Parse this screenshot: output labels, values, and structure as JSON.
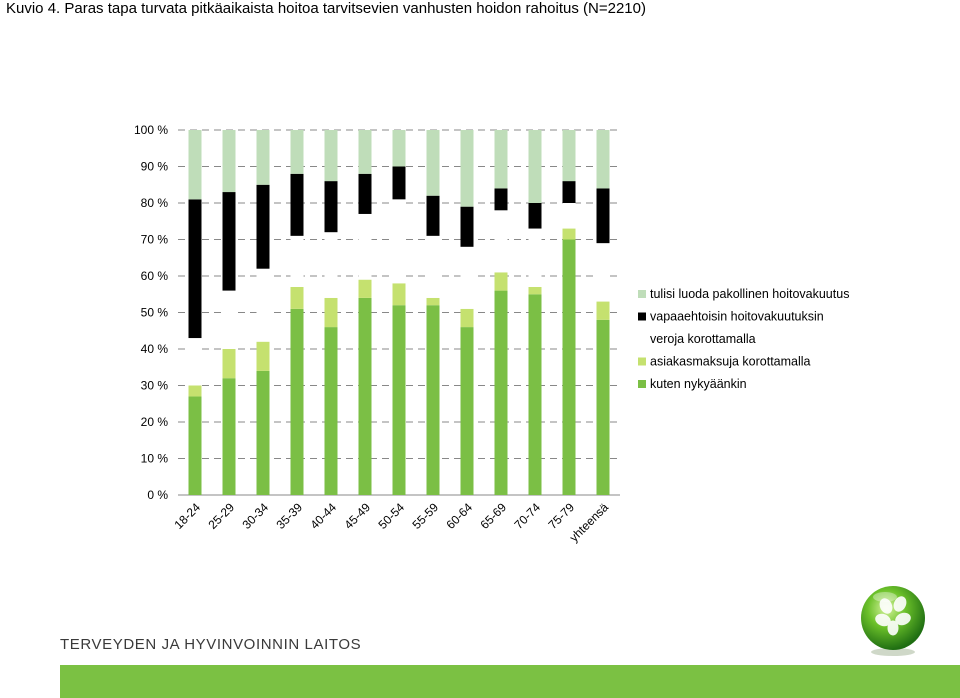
{
  "title": "Kuvio 4. Paras tapa turvata pitkäaikaista hoitoa tarvitsevien vanhusten hoidon rahoitus (N=2210)",
  "footer": {
    "organization": "TERVEYDEN JA HYVINVOINNIN LAITOS"
  },
  "colors": {
    "pakollinen": "#bfddb9",
    "vapaaehtoinen": "#000000",
    "verot": "#ffffff",
    "asiakasmaksut": "#c5e16f",
    "nykyinen": "#7bbf45",
    "footer_bar": "#7bc143",
    "gridline": "#888888"
  },
  "chart_data": {
    "type": "bar",
    "stacked": true,
    "title": "Kuvio 4. Paras tapa turvata pitkäaikaista hoitoa tarvitsevien vanhusten hoidon rahoitus (N=2210)",
    "xlabel": "",
    "ylabel": "",
    "ylim": [
      0,
      100
    ],
    "y_ticks": [
      "0 %",
      "10 %",
      "20 %",
      "30 %",
      "40 %",
      "50 %",
      "60 %",
      "70 %",
      "80 %",
      "90 %",
      "100 %"
    ],
    "grid": "horizontal dashed",
    "legend_position": "right",
    "categories": [
      "18-24",
      "25-29",
      "30-34",
      "35-39",
      "40-44",
      "45-49",
      "50-54",
      "55-59",
      "60-64",
      "65-69",
      "70-74",
      "75-79",
      "yhteensä"
    ],
    "series": [
      {
        "name": "kuten nykyäänkin",
        "color": "#7bbf45",
        "values": [
          27,
          32,
          34,
          51,
          46,
          54,
          52,
          52,
          46,
          56,
          55,
          70,
          48
        ]
      },
      {
        "name": "asiakasmaksuja korottamalla",
        "color": "#c5e16f",
        "values": [
          3,
          8,
          8,
          6,
          8,
          5,
          6,
          2,
          5,
          5,
          2,
          3,
          5
        ]
      },
      {
        "name": "veroja korottamalla",
        "color": "#ffffff",
        "values": [
          13,
          16,
          20,
          14,
          18,
          18,
          23,
          17,
          17,
          17,
          16,
          7,
          16
        ]
      },
      {
        "name": "vapaaehtoisin hoitovakuutuksin",
        "color": "#000000",
        "values": [
          38,
          27,
          23,
          17,
          14,
          11,
          9,
          11,
          11,
          6,
          7,
          6,
          15
        ]
      },
      {
        "name": "tulisi luoda pakollinen hoitovakuutus",
        "color": "#bfddb9",
        "values": [
          19,
          17,
          15,
          12,
          14,
          12,
          10,
          18,
          21,
          16,
          20,
          14,
          16
        ]
      }
    ]
  }
}
